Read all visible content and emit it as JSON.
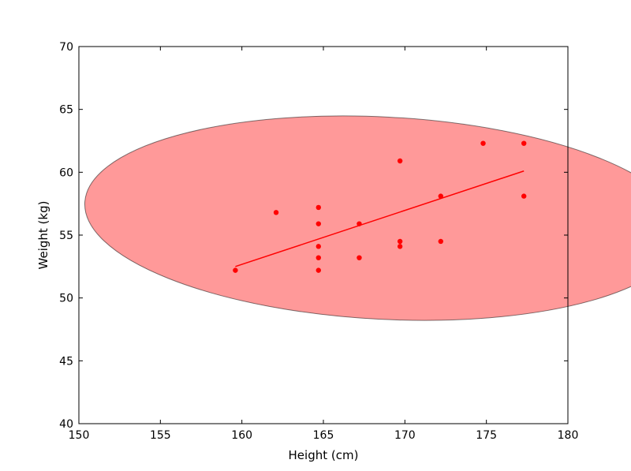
{
  "chart_data": {
    "type": "scatter",
    "title": "",
    "xlabel": "Height (cm)",
    "ylabel": "Weight (kg)",
    "xlim": [
      150,
      180
    ],
    "ylim": [
      40,
      70
    ],
    "xticks": [
      150,
      155,
      160,
      165,
      170,
      175,
      180
    ],
    "yticks": [
      40,
      45,
      50,
      55,
      60,
      65,
      70
    ],
    "grid": false,
    "legend": "none",
    "point_color": "#ff0000",
    "points": [
      {
        "x": 159.6,
        "y": 52.2
      },
      {
        "x": 162.1,
        "y": 56.8
      },
      {
        "x": 164.7,
        "y": 57.2
      },
      {
        "x": 164.7,
        "y": 55.9
      },
      {
        "x": 164.7,
        "y": 54.1
      },
      {
        "x": 164.7,
        "y": 53.2
      },
      {
        "x": 164.7,
        "y": 52.2
      },
      {
        "x": 167.2,
        "y": 55.9
      },
      {
        "x": 167.2,
        "y": 53.2
      },
      {
        "x": 169.7,
        "y": 60.9
      },
      {
        "x": 169.7,
        "y": 54.5
      },
      {
        "x": 169.7,
        "y": 54.1
      },
      {
        "x": 172.2,
        "y": 58.1
      },
      {
        "x": 172.2,
        "y": 54.5
      },
      {
        "x": 174.8,
        "y": 62.3
      },
      {
        "x": 177.3,
        "y": 62.3
      },
      {
        "x": 177.3,
        "y": 58.1
      }
    ],
    "fit_line": {
      "color": "#ff0000",
      "x": [
        159.6,
        177.3
      ],
      "y": [
        52.5,
        60.1
      ]
    },
    "ellipse": {
      "fill": "#ff0000",
      "fill_opacity": 0.4,
      "stroke": "#000000",
      "center_x": 168.7,
      "center_y": 56.35,
      "extreme_points": [
        {
          "x": 175.6,
          "y": 63.4
        },
        {
          "x": 161.8,
          "y": 49.3
        },
        {
          "x": 181.8,
          "y": 61.2
        },
        {
          "x": 155.8,
          "y": 51.4
        }
      ]
    }
  }
}
